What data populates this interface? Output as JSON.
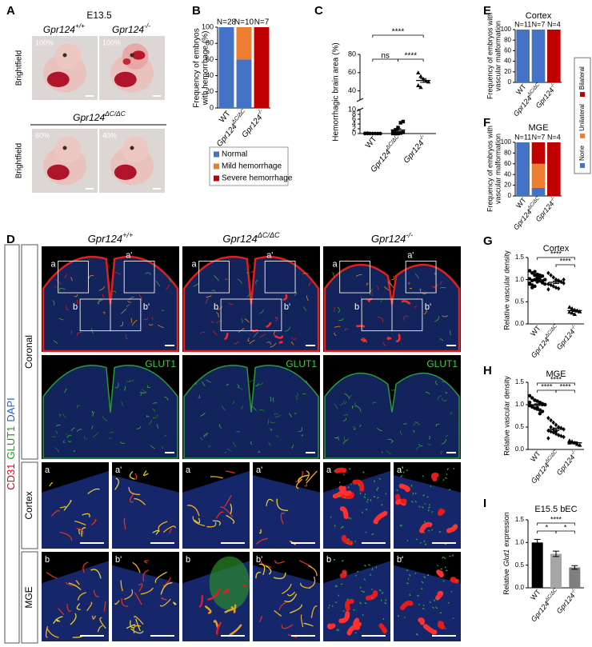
{
  "figure": {
    "panel_labels": [
      "A",
      "B",
      "C",
      "D",
      "E",
      "F",
      "G",
      "H",
      "I"
    ]
  },
  "panel_a": {
    "stage": "E13.5",
    "imaging": "Brightfield",
    "genotypes": [
      {
        "text": "Gpr124",
        "sup": "+/+"
      },
      {
        "text": "Gpr124",
        "sup": "-/-"
      },
      {
        "text": "Gpr124",
        "sup": "ΔC/ΔC"
      }
    ],
    "percentages": [
      "100%",
      "100%",
      "60%",
      "40%"
    ]
  },
  "chart_data": [
    {
      "type": "bar",
      "stacked": true,
      "ylabel": [
        "Frequency of embryos",
        "with hemorrhage (%)"
      ],
      "categories": [
        {
          "text": "WT"
        },
        {
          "text": "Gpr124",
          "sup": "ΔC/ΔC"
        },
        {
          "text": "Gpr124",
          "sup": "-/-"
        }
      ],
      "annotations": [
        "N=28",
        "N=10",
        "N=7"
      ],
      "series": [
        {
          "name": "Normal",
          "color": "#4472c4",
          "values": [
            100,
            60,
            0
          ]
        },
        {
          "name": "Mild hemorrhage",
          "color": "#ed7d31",
          "values": [
            0,
            40,
            0
          ]
        },
        {
          "name": "Severe hemorrhage",
          "color": "#c00000",
          "values": [
            0,
            0,
            100
          ]
        }
      ],
      "ylim": [
        0,
        100
      ],
      "yticks": [
        0,
        20,
        40,
        60,
        80,
        100
      ],
      "legend": "bottom"
    },
    {
      "type": "scatter",
      "ylabel": "Hemorrhagic brain area (%)",
      "categories": [
        {
          "text": "WT"
        },
        {
          "text": "Gpr124",
          "sup": "ΔC/ΔC"
        },
        {
          "text": "Gpr124",
          "sup": "-/-"
        }
      ],
      "series": [
        {
          "values": [
            0,
            0,
            0,
            0,
            0,
            0,
            0,
            0,
            0,
            0,
            0,
            0,
            0,
            0,
            0.1,
            0.2
          ],
          "mean": 0.02,
          "sem": 0.01
        },
        {
          "values": [
            0,
            0,
            0,
            0.2,
            0.5,
            1,
            1.5,
            2.5,
            4.5,
            5
          ],
          "mean": 1.5,
          "sem": 0.6
        },
        {
          "values": [
            60,
            56,
            53,
            51,
            50,
            46,
            44
          ],
          "mean": 51.4,
          "sem": 2.1
        }
      ],
      "markers": [
        "circle",
        "square",
        "triangle"
      ],
      "ylim": [
        0,
        10
      ],
      "yticks": [
        0,
        2,
        4,
        6,
        8,
        10
      ],
      "ylim_upper": [
        30,
        80
      ],
      "yticks_upper": [
        40,
        60,
        80
      ],
      "significance": [
        {
          "groups": [
            0,
            2
          ],
          "label": "****"
        },
        {
          "groups": [
            0,
            1
          ],
          "label": "ns"
        },
        {
          "groups": [
            1,
            2
          ],
          "label": "****"
        }
      ]
    },
    {
      "type": "bar",
      "stacked": true,
      "title": "Cortex",
      "ylabel": [
        "Frequency of embryos with",
        "vascular malformation"
      ],
      "categories": [
        {
          "text": "WT"
        },
        {
          "text": "Gpr124",
          "sup": "ΔC/ΔC"
        },
        {
          "text": "Gpr124",
          "sup": "-/-"
        }
      ],
      "annotations": [
        "N=11",
        "N=7",
        "N=4"
      ],
      "series": [
        {
          "name": "None",
          "color": "#4472c4",
          "values": [
            100,
            100,
            0
          ]
        },
        {
          "name": "Unilateral",
          "color": "#ed7d31",
          "values": [
            0,
            0,
            0
          ]
        },
        {
          "name": "Bilateral",
          "color": "#c00000",
          "values": [
            0,
            0,
            100
          ]
        }
      ],
      "ylim": [
        0,
        100
      ],
      "yticks": [
        0,
        20,
        40,
        60,
        80,
        100
      ],
      "legend": "right"
    },
    {
      "type": "bar",
      "stacked": true,
      "title": "MGE",
      "ylabel": [
        "Frequency of embryos with",
        "vascular malformation"
      ],
      "categories": [
        {
          "text": "WT"
        },
        {
          "text": "Gpr124",
          "sup": "ΔC/ΔC"
        },
        {
          "text": "Gpr124",
          "sup": "-/-"
        }
      ],
      "annotations": [
        "N=11",
        "N=7",
        "N=4"
      ],
      "series": [
        {
          "color": "#4472c4",
          "values": [
            100,
            15,
            0
          ]
        },
        {
          "color": "#ed7d31",
          "values": [
            0,
            45,
            0
          ]
        },
        {
          "color": "#c00000",
          "values": [
            0,
            40,
            100
          ]
        }
      ],
      "ylim": [
        0,
        100
      ],
      "yticks": [
        0,
        20,
        40,
        60,
        80,
        100
      ]
    },
    {
      "type": "scatter",
      "title": "Cortex",
      "ylabel": "Relative vascular density",
      "categories": [
        {
          "text": "WT"
        },
        {
          "text": "Gpr124",
          "sup": "ΔC/ΔC"
        },
        {
          "text": "Gpr124",
          "sup": "-/-"
        }
      ],
      "series": [
        {
          "values": [
            1.2,
            1.15,
            1.1,
            1.12,
            1.05,
            1.08,
            1.0,
            1.02,
            0.98,
            1.0,
            0.95,
            0.97,
            0.93,
            0.9,
            0.92,
            0.88,
            0.85,
            1.05,
            1.1,
            0.96,
            1.0,
            0.9,
            0.82,
            1.18,
            1.0
          ],
          "mean": 1.0,
          "sem": 0.02
        },
        {
          "values": [
            1.15,
            1.1,
            1.05,
            1.0,
            0.98,
            0.95,
            0.92,
            0.9,
            0.88,
            0.85,
            0.82,
            0.8,
            0.95,
            1.0,
            0.78
          ],
          "mean": 0.94,
          "sem": 0.03
        },
        {
          "values": [
            0.38,
            0.35,
            0.32,
            0.3,
            0.28,
            0.27,
            0.25,
            0.22,
            0.3
          ],
          "mean": 0.3,
          "sem": 0.02
        }
      ],
      "markers": [
        "circle",
        "diamond",
        "triangle"
      ],
      "ylim": [
        0,
        1.5
      ],
      "yticks": [
        {
          "value": 0,
          "label": "0.0"
        },
        0.5,
        {
          "value": 1,
          "label": "1.0"
        },
        1.5
      ],
      "significance": [
        {
          "groups": [
            0,
            2
          ],
          "label": "****"
        },
        {
          "groups": [
            1,
            2
          ],
          "label": "****"
        }
      ]
    },
    {
      "type": "scatter",
      "title": "MGE",
      "ylabel": "Relative vascular density",
      "categories": [
        {
          "text": "WT"
        },
        {
          "text": "Gpr124",
          "sup": "ΔC/ΔC"
        },
        {
          "text": "Gpr124",
          "sup": "-/-"
        }
      ],
      "series": [
        {
          "values": [
            1.2,
            1.15,
            1.1,
            1.08,
            1.05,
            1.02,
            1.0,
            0.98,
            0.95,
            0.92,
            0.9,
            0.88,
            0.85,
            1.0,
            1.05,
            0.97,
            1.1,
            0.93,
            0.8,
            1.0
          ],
          "mean": 1.0,
          "sem": 0.02
        },
        {
          "values": [
            0.7,
            0.65,
            0.6,
            0.55,
            0.5,
            0.48,
            0.45,
            0.42,
            0.4,
            0.38,
            0.35,
            0.32,
            0.3,
            0.28,
            0.25,
            0.5,
            0.45,
            0.4
          ],
          "mean": 0.45,
          "sem": 0.03
        },
        {
          "values": [
            0.2,
            0.18,
            0.15,
            0.12,
            0.1,
            0.15
          ],
          "mean": 0.15,
          "sem": 0.02
        }
      ],
      "markers": [
        "circle",
        "diamond",
        "triangle"
      ],
      "ylim": [
        0,
        1.5
      ],
      "yticks": [
        {
          "value": 0,
          "label": "0.0"
        },
        0.5,
        {
          "value": 1,
          "label": "1.0"
        },
        1.5
      ],
      "significance": [
        {
          "groups": [
            0,
            2
          ],
          "label": "****"
        },
        {
          "groups": [
            0,
            1
          ],
          "label": "****"
        },
        {
          "groups": [
            1,
            2
          ],
          "label": "****"
        }
      ]
    },
    {
      "type": "bar",
      "title": "E15.5 bEC",
      "ylabel": {
        "pre": "Relative",
        "gene": "Glut1",
        "post": "expression"
      },
      "categories": [
        {
          "text": "WT"
        },
        {
          "text": "Gpr124",
          "sup": "ΔC/ΔC"
        },
        {
          "text": "Gpr124",
          "sup": "-/-"
        }
      ],
      "values": [
        1.0,
        0.75,
        0.45
      ],
      "errors": [
        0.07,
        0.06,
        0.04
      ],
      "colors": [
        "#000000",
        "#a6a6a6",
        "#7f7f7f"
      ],
      "ylim": [
        0,
        1.5
      ],
      "yticks": [
        {
          "value": 0,
          "label": "0.0"
        },
        0.5,
        {
          "value": 1,
          "label": "1.0"
        },
        1.5
      ],
      "significance": [
        {
          "groups": [
            0,
            2
          ],
          "label": "****"
        },
        {
          "groups": [
            0,
            1
          ],
          "label": "*"
        },
        {
          "groups": [
            1,
            2
          ],
          "label": "*"
        }
      ]
    }
  ],
  "panel_d": {
    "genotypes": [
      {
        "text": "Gpr124",
        "sup": "+/+"
      },
      {
        "text": "Gpr124",
        "sup": "ΔC/ΔC"
      },
      {
        "text": "Gpr124",
        "sup": "-/-"
      }
    ],
    "channels": [
      {
        "text": "CD31",
        "color": "#e0001b"
      },
      {
        "text": "GLUT1",
        "color": "#1a9e1a"
      },
      {
        "text": "DAPI",
        "color": "#1f5fd0"
      }
    ],
    "rows": [
      "Coronal",
      "Cortex",
      "MGE"
    ],
    "insets": [
      "a",
      "a'",
      "b",
      "b'"
    ],
    "marker": "GLUT1"
  }
}
